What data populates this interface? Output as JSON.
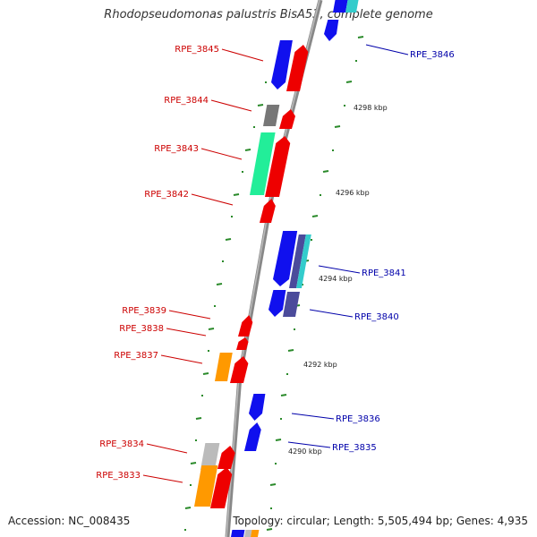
{
  "title": "Rhodopseudomonas palustris BisA53, complete genome",
  "footer": {
    "accession": "Accession: NC_008435",
    "summary": "Topology: circular; Length: 5,505,494 bp; Genes: 4,935"
  },
  "colors": {
    "backbone": "#888888",
    "tick": "#2a8a2a",
    "left_label": "#cc0000",
    "right_label": "#0000aa",
    "red": "#ee0000",
    "blue": "#1010ee",
    "gray": "#777777",
    "spring_green": "#22ee99",
    "orange": "#ff9900",
    "light_gray": "#bbbbbb",
    "slate": "#4b4b9b",
    "cyan": "#33cccc"
  },
  "kbp_marks": [
    {
      "text": "4298 kbp"
    },
    {
      "text": "4296 kbp"
    },
    {
      "text": "4294 kbp"
    },
    {
      "text": "4292 kbp"
    },
    {
      "text": "4290 kbp"
    }
  ],
  "left_genes": [
    {
      "label": "RPE_3845"
    },
    {
      "label": "RPE_3844"
    },
    {
      "label": "RPE_3843"
    },
    {
      "label": "RPE_3842"
    },
    {
      "label": "RPE_3839"
    },
    {
      "label": "RPE_3838"
    },
    {
      "label": "RPE_3837"
    },
    {
      "label": "RPE_3834"
    },
    {
      "label": "RPE_3833"
    }
  ],
  "right_genes": [
    {
      "label": "RPE_3846"
    },
    {
      "label": "RPE_3841"
    },
    {
      "label": "RPE_3840"
    },
    {
      "label": "RPE_3836"
    },
    {
      "label": "RPE_3835"
    }
  ]
}
